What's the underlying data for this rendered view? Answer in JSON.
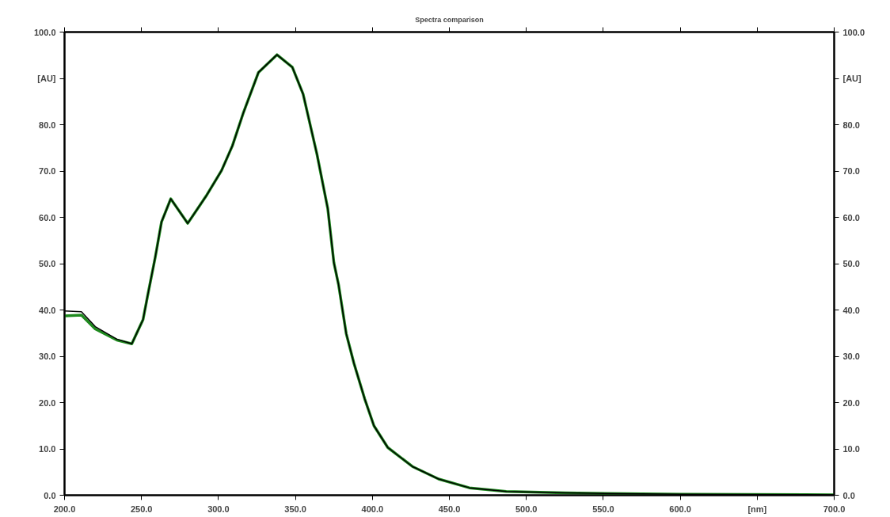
{
  "chart_data": {
    "type": "line",
    "title": "Spectra comparison",
    "x": [
      200,
      211,
      220,
      234,
      243.7,
      251,
      254,
      259,
      263,
      269,
      280,
      292,
      302,
      309,
      316,
      326,
      338,
      348,
      355,
      364,
      371,
      375,
      378,
      383,
      388,
      395,
      401,
      410,
      426,
      443,
      463,
      487,
      525,
      600,
      700
    ],
    "series": [
      {
        "color": "#000000",
        "values": [
          39.8,
          39.6,
          36.4,
          33.7,
          32.7,
          37.9,
          43.1,
          51.5,
          59.0,
          64.0,
          58.7,
          64.6,
          70.1,
          75.4,
          82.4,
          91.3,
          95.1,
          92.4,
          86.6,
          73.6,
          61.9,
          50.2,
          45.5,
          34.9,
          28.5,
          20.8,
          15.0,
          10.3,
          6.2,
          3.5,
          1.6,
          0.8,
          0.5,
          0.2,
          0.1
        ]
      },
      {
        "color": "#1f8a1f",
        "values": [
          38.7,
          38.9,
          35.9,
          33.5,
          32.7,
          37.9,
          43.1,
          51.5,
          59.0,
          64.0,
          58.7,
          64.6,
          70.1,
          75.4,
          82.4,
          91.3,
          95.1,
          92.4,
          86.6,
          73.6,
          61.9,
          50.2,
          45.5,
          34.9,
          28.5,
          20.8,
          15.0,
          10.3,
          6.2,
          3.5,
          1.6,
          0.8,
          0.5,
          0.2,
          0.1
        ]
      }
    ],
    "xlim": [
      200,
      700
    ],
    "xticks": [
      {
        "value": 200,
        "label": "200.0"
      },
      {
        "value": 250,
        "label": "250.0"
      },
      {
        "value": 300,
        "label": "300.0"
      },
      {
        "value": 350,
        "label": "350.0"
      },
      {
        "value": 400,
        "label": "400.0"
      },
      {
        "value": 450,
        "label": "450.0"
      },
      {
        "value": 500,
        "label": "500.0"
      },
      {
        "value": 550,
        "label": "550.0"
      },
      {
        "value": 600,
        "label": "600.0"
      },
      {
        "value": 650,
        "label": "[nm]"
      },
      {
        "value": 700,
        "label": "700.0"
      }
    ],
    "ylim": [
      0,
      100
    ],
    "yticks": [
      {
        "value": 0,
        "label": "0.0"
      },
      {
        "value": 10,
        "label": "10.0"
      },
      {
        "value": 20,
        "label": "20.0"
      },
      {
        "value": 30,
        "label": "30.0"
      },
      {
        "value": 40,
        "label": "40.0"
      },
      {
        "value": 50,
        "label": "50.0"
      },
      {
        "value": 60,
        "label": "60.0"
      },
      {
        "value": 70,
        "label": "70.0"
      },
      {
        "value": 80,
        "label": "80.0"
      },
      {
        "value": 90,
        "label": "[AU]"
      },
      {
        "value": 100,
        "label": "100.0"
      }
    ],
    "y2lim": [
      0,
      100
    ],
    "y2ticks": [
      {
        "value": 0,
        "label": "0.0"
      },
      {
        "value": 10,
        "label": "10.0"
      },
      {
        "value": 20,
        "label": "20.0"
      },
      {
        "value": 30,
        "label": "30.0"
      },
      {
        "value": 40,
        "label": "40.0"
      },
      {
        "value": 50,
        "label": "50.0"
      },
      {
        "value": 60,
        "label": "60.0"
      },
      {
        "value": 70,
        "label": "70.0"
      },
      {
        "value": 80,
        "label": "80.0"
      },
      {
        "value": 90,
        "label": "[AU]"
      },
      {
        "value": 100,
        "label": "100.0"
      }
    ],
    "grid": false,
    "line_style": "solid"
  }
}
